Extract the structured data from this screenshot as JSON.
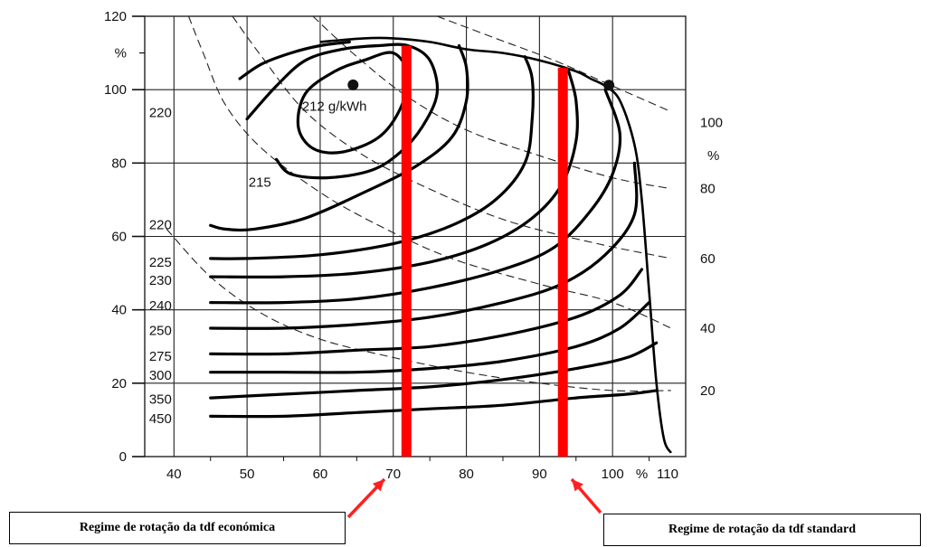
{
  "chart_data": {
    "type": "line",
    "title": "",
    "xlabel": "",
    "ylabel": "",
    "x_unit": "%",
    "y_unit_left": "%",
    "y_unit_right": "%",
    "xlim": [
      36,
      110
    ],
    "ylim": [
      0,
      120
    ],
    "x_ticks": [
      40,
      50,
      60,
      70,
      80,
      90,
      100,
      110
    ],
    "y_ticks": [
      0,
      20,
      40,
      60,
      80,
      100,
      120
    ],
    "right_ticks": [
      {
        "label": "100",
        "y": 91
      },
      {
        "label": "80",
        "y": 73
      },
      {
        "label": "60",
        "y": 54
      },
      {
        "label": "40",
        "y": 35
      },
      {
        "label": "20",
        "y": 18
      }
    ],
    "grid": true,
    "full_load_curve": [
      [
        60,
        113
      ],
      [
        66,
        114
      ],
      [
        70,
        114
      ],
      [
        75,
        113
      ],
      [
        80,
        111
      ],
      [
        85,
        110
      ],
      [
        90,
        108
      ],
      [
        95,
        105
      ],
      [
        97,
        103
      ],
      [
        99,
        101
      ],
      [
        101,
        97
      ],
      [
        103,
        85
      ],
      [
        104,
        70
      ],
      [
        105,
        45
      ],
      [
        106,
        20
      ],
      [
        107,
        5
      ],
      [
        108,
        1
      ]
    ],
    "consumption_curves": [
      {
        "label": "212 g/kWh",
        "closed": true,
        "points": [
          [
            66,
            108
          ],
          [
            70,
            110
          ],
          [
            72,
            104
          ],
          [
            71,
            95
          ],
          [
            68,
            87
          ],
          [
            63,
            83
          ],
          [
            59,
            84
          ],
          [
            57,
            90
          ],
          [
            58,
            99
          ],
          [
            62,
            105
          ]
        ]
      },
      {
        "label": "215",
        "closed": false,
        "points": [
          [
            50,
            92
          ],
          [
            54,
            101
          ],
          [
            58,
            108
          ],
          [
            63,
            111
          ],
          [
            68,
            112
          ],
          [
            72,
            112
          ],
          [
            75,
            108
          ],
          [
            76,
            99
          ],
          [
            74,
            90
          ],
          [
            71,
            83
          ],
          [
            67,
            78
          ],
          [
            61,
            76
          ],
          [
            56,
            77
          ],
          [
            54,
            81
          ]
        ]
      },
      {
        "label": "220",
        "closed": false,
        "points": [
          [
            49,
            103
          ],
          [
            52,
            107
          ],
          [
            56,
            110
          ],
          [
            60,
            112
          ],
          [
            64,
            113
          ]
        ]
      },
      {
        "label": "220",
        "closed": false,
        "points": [
          [
            45,
            63
          ],
          [
            47,
            62
          ],
          [
            51,
            62
          ],
          [
            58,
            65
          ],
          [
            66,
            72
          ],
          [
            73,
            79
          ],
          [
            78,
            87
          ],
          [
            80,
            97
          ],
          [
            80,
            106
          ],
          [
            79,
            112
          ]
        ]
      },
      {
        "label": "225",
        "closed": false,
        "points": [
          [
            45,
            54
          ],
          [
            50,
            54
          ],
          [
            60,
            55
          ],
          [
            70,
            58
          ],
          [
            78,
            63
          ],
          [
            84,
            70
          ],
          [
            88,
            80
          ],
          [
            89,
            92
          ],
          [
            89,
            103
          ],
          [
            88,
            109
          ]
        ]
      },
      {
        "label": "230",
        "closed": false,
        "points": [
          [
            45,
            49
          ],
          [
            55,
            49
          ],
          [
            65,
            50
          ],
          [
            75,
            53
          ],
          [
            83,
            58
          ],
          [
            89,
            65
          ],
          [
            93,
            74
          ],
          [
            95,
            86
          ],
          [
            95,
            97
          ],
          [
            94,
            105
          ]
        ]
      },
      {
        "label": "240",
        "closed": false,
        "points": [
          [
            45,
            42
          ],
          [
            55,
            42
          ],
          [
            65,
            43
          ],
          [
            75,
            46
          ],
          [
            85,
            51
          ],
          [
            92,
            57
          ],
          [
            97,
            67
          ],
          [
            100,
            77
          ],
          [
            101,
            88
          ],
          [
            99,
            100
          ]
        ]
      },
      {
        "label": "250",
        "closed": false,
        "points": [
          [
            45,
            35
          ],
          [
            55,
            35
          ],
          [
            65,
            36
          ],
          [
            75,
            38
          ],
          [
            85,
            42
          ],
          [
            93,
            47
          ],
          [
            99,
            55
          ],
          [
            103,
            66
          ],
          [
            103,
            80
          ]
        ]
      },
      {
        "label": "275",
        "closed": false,
        "points": [
          [
            45,
            28
          ],
          [
            55,
            28
          ],
          [
            65,
            29
          ],
          [
            75,
            30
          ],
          [
            85,
            33
          ],
          [
            95,
            38
          ],
          [
            101,
            44
          ],
          [
            104,
            51
          ]
        ]
      },
      {
        "label": "300",
        "closed": false,
        "points": [
          [
            45,
            23
          ],
          [
            55,
            23
          ],
          [
            65,
            23
          ],
          [
            75,
            24
          ],
          [
            85,
            26
          ],
          [
            95,
            30
          ],
          [
            101,
            35
          ],
          [
            105,
            42
          ]
        ]
      },
      {
        "label": "350",
        "closed": false,
        "points": [
          [
            45,
            16
          ],
          [
            55,
            17
          ],
          [
            65,
            18
          ],
          [
            75,
            19
          ],
          [
            85,
            21
          ],
          [
            95,
            24
          ],
          [
            102,
            27
          ],
          [
            106,
            31
          ]
        ]
      },
      {
        "label": "450",
        "closed": false,
        "points": [
          [
            45,
            11
          ],
          [
            55,
            11
          ],
          [
            65,
            12
          ],
          [
            75,
            13
          ],
          [
            85,
            14
          ],
          [
            95,
            16
          ],
          [
            102,
            17
          ],
          [
            106,
            18
          ]
        ]
      }
    ],
    "power_hyperbolas": [
      {
        "label": "100",
        "points": [
          [
            76,
            120
          ],
          [
            84,
            114
          ],
          [
            92,
            108
          ],
          [
            100,
            101
          ],
          [
            108,
            94
          ]
        ]
      },
      {
        "label": "80",
        "points": [
          [
            59,
            120
          ],
          [
            65,
            109
          ],
          [
            72,
            98
          ],
          [
            80,
            89
          ],
          [
            90,
            82
          ],
          [
            100,
            76
          ],
          [
            108,
            73
          ]
        ]
      },
      {
        "label": "60",
        "points": [
          [
            48,
            120
          ],
          [
            52,
            109
          ],
          [
            58,
            94
          ],
          [
            66,
            82
          ],
          [
            76,
            72
          ],
          [
            86,
            64
          ],
          [
            98,
            58
          ],
          [
            108,
            54
          ]
        ]
      },
      {
        "label": "40",
        "points": [
          [
            42,
            120
          ],
          [
            44,
            110
          ],
          [
            47,
            96
          ],
          [
            52,
            84
          ],
          [
            60,
            72
          ],
          [
            68,
            63
          ],
          [
            78,
            54
          ],
          [
            90,
            47
          ],
          [
            100,
            42
          ],
          [
            108,
            35
          ]
        ]
      },
      {
        "label": "20",
        "points": [
          [
            39,
            62
          ],
          [
            45,
            49
          ],
          [
            52,
            39
          ],
          [
            60,
            32
          ],
          [
            70,
            27
          ],
          [
            80,
            23
          ],
          [
            90,
            20
          ],
          [
            100,
            18
          ],
          [
            108,
            18
          ]
        ]
      }
    ],
    "points": [
      {
        "x": 64.5,
        "y": 101.3
      },
      {
        "x": 99.5,
        "y": 101.2
      }
    ],
    "markers": [
      {
        "name": "economic-pto-speed",
        "x": 71.8,
        "y_top": 112,
        "color": "#ff0000"
      },
      {
        "name": "standard-pto-speed",
        "x": 93.2,
        "y_top": 106,
        "color": "#ff0000"
      }
    ],
    "colors": {
      "curves": "#000000",
      "grid": "#222222",
      "markers": "#ff0000",
      "arrows": "#ff2020"
    },
    "annotations": {
      "economic": "Regime de rotação da tdf económica",
      "standard": "Regime de rotação da tdf standard"
    }
  }
}
